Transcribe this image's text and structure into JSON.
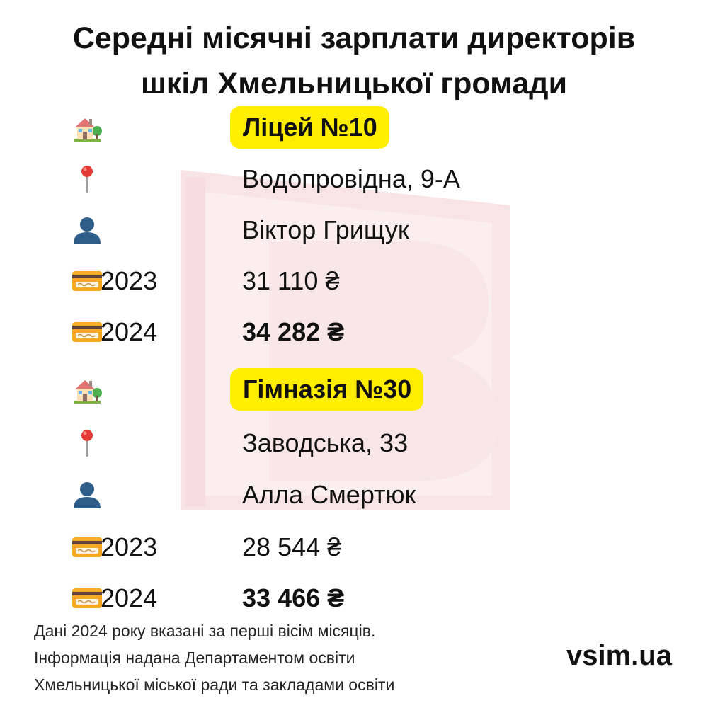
{
  "title": {
    "line1": "Середні місячні зарплати директорів",
    "line2": "шкіл Хмельницької громади"
  },
  "schools": [
    {
      "name": "Ліцей №10",
      "address": "Водопровідна, 9-А",
      "director": "Віктор Грищук",
      "salaries": [
        {
          "year": "2023",
          "amount": "31 110 ₴"
        },
        {
          "year": "2024",
          "amount": "34 282 ₴"
        }
      ]
    },
    {
      "name": "Гімназія №30",
      "address": "Заводська, 33",
      "director": "Алла Смертюк",
      "salaries": [
        {
          "year": "2023",
          "amount": "28 544 ₴"
        },
        {
          "year": "2024",
          "amount": "33 466 ₴"
        }
      ]
    }
  ],
  "icons": {
    "school": "house-with-garden-icon",
    "address": "round-pushpin-icon",
    "director": "bust-silhouette-icon",
    "salary": "credit-card-icon"
  },
  "colors": {
    "highlight": "#ffee00",
    "watermark": "#f8e4e4"
  },
  "footer": {
    "line1": "Дані 2024 року вказані за перші вісім місяців.",
    "line2": "Інформація надана Департаментом освіти",
    "line3": "Хмельницької міської ради та закладами освіти"
  },
  "brand": "vsim.ua"
}
